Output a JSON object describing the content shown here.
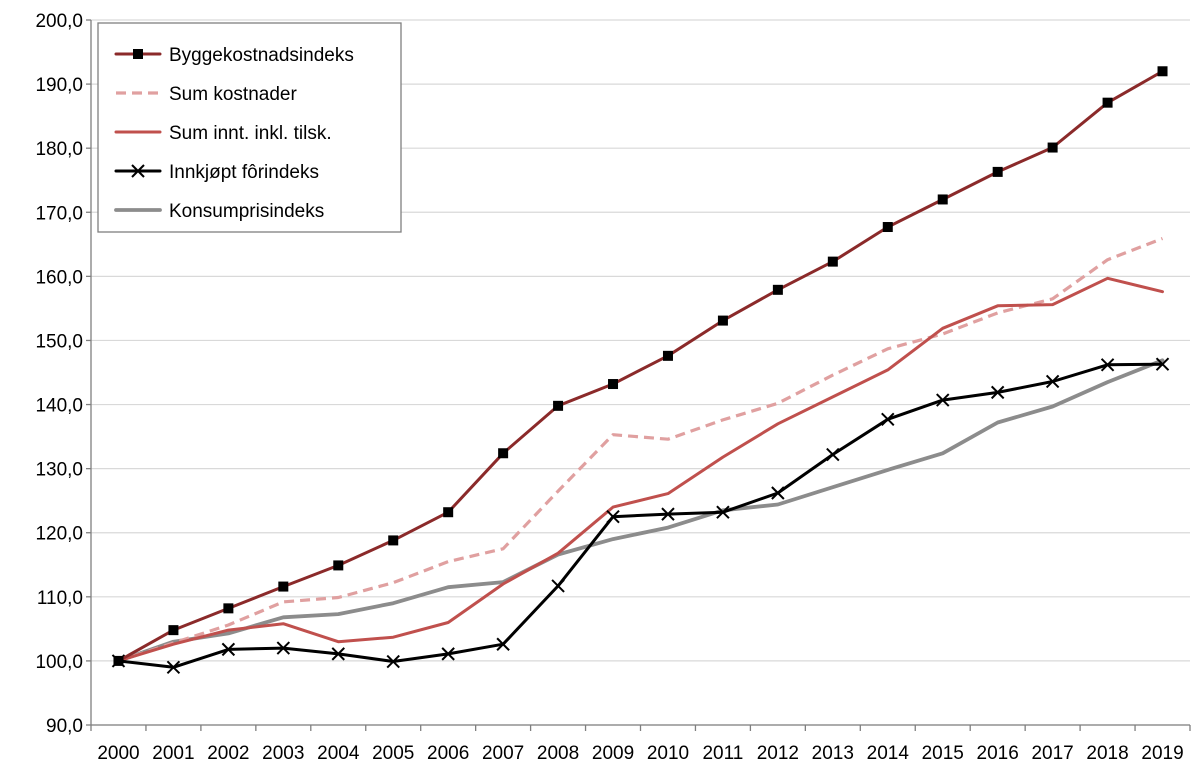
{
  "chart_data": {
    "type": "line",
    "title": "",
    "xlabel": "",
    "ylabel": "",
    "categories": [
      "2000",
      "2001",
      "2002",
      "2003",
      "2004",
      "2005",
      "2006",
      "2007",
      "2008",
      "2009",
      "2010",
      "2011",
      "2012",
      "2013",
      "2014",
      "2015",
      "2016",
      "2017",
      "2018",
      "2019"
    ],
    "ylim": [
      90,
      200
    ],
    "yticks": [
      "90,0",
      "100,0",
      "110,0",
      "120,0",
      "130,0",
      "140,0",
      "150,0",
      "160,0",
      "170,0",
      "180,0",
      "190,0",
      "200,0"
    ],
    "grid": true,
    "legend_position": "top-left",
    "series": [
      {
        "name": "Byggekostnadsindeks",
        "color": "#8b2a2a",
        "style": "solid-square-markers",
        "values": [
          100.0,
          104.8,
          108.2,
          111.6,
          114.9,
          118.8,
          123.2,
          132.4,
          139.8,
          143.2,
          147.6,
          153.1,
          157.9,
          162.3,
          167.7,
          172.0,
          176.3,
          180.1,
          187.1,
          192.0
        ]
      },
      {
        "name": "Sum kostnader",
        "color": "#e0a0a0",
        "style": "dashed",
        "values": [
          100.0,
          102.8,
          105.6,
          109.2,
          109.9,
          112.2,
          115.5,
          117.5,
          126.5,
          135.3,
          134.6,
          137.6,
          140.2,
          144.6,
          148.7,
          151.0,
          154.3,
          156.5,
          162.6,
          165.9
        ]
      },
      {
        "name": "Sum innt. inkl. tilsk.",
        "color": "#c0504d",
        "style": "solid",
        "values": [
          100.0,
          102.6,
          104.8,
          105.8,
          103.0,
          103.7,
          106.0,
          112.0,
          116.8,
          124.0,
          126.1,
          131.8,
          137.0,
          141.2,
          145.4,
          151.9,
          155.4,
          155.6,
          159.7,
          157.6
        ]
      },
      {
        "name": "Innkjøpt fôrindeks",
        "color": "#000000",
        "style": "solid-x-markers",
        "values": [
          100.0,
          99.0,
          101.8,
          102.0,
          101.1,
          99.9,
          101.1,
          102.6,
          111.7,
          122.5,
          122.9,
          123.2,
          126.2,
          132.2,
          137.7,
          140.7,
          141.9,
          143.6,
          146.2,
          146.3
        ]
      },
      {
        "name": "Konsumprisindeks",
        "color": "#8c8c8c",
        "style": "solid-thick",
        "values": [
          100.0,
          103.0,
          104.3,
          106.8,
          107.3,
          109.0,
          111.5,
          112.3,
          116.6,
          119.0,
          120.8,
          123.5,
          124.4,
          127.1,
          129.8,
          132.4,
          137.2,
          139.7,
          143.5,
          146.9
        ]
      }
    ]
  }
}
